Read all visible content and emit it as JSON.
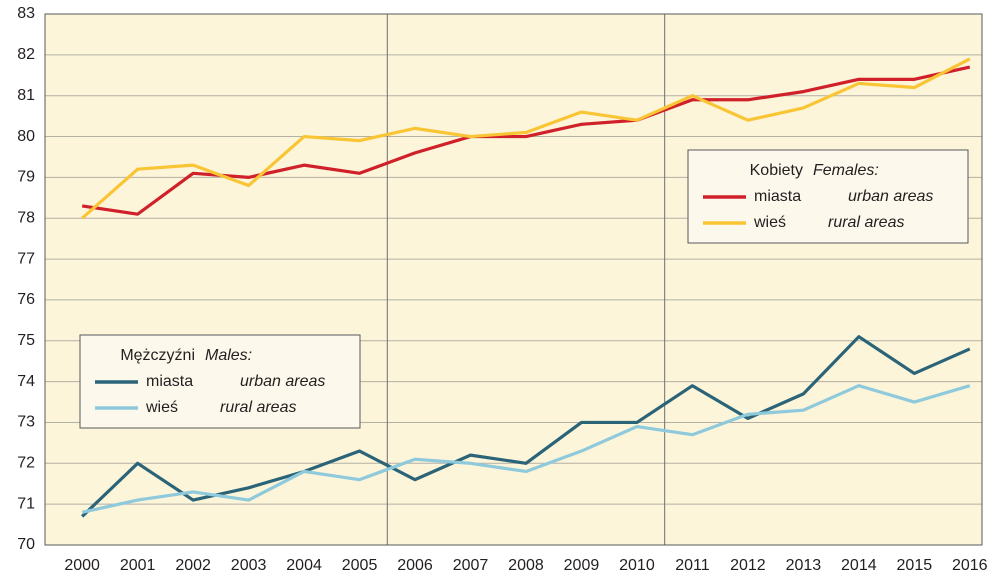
{
  "chart_data": {
    "type": "line",
    "x": [
      2000,
      2001,
      2002,
      2003,
      2004,
      2005,
      2006,
      2007,
      2008,
      2009,
      2010,
      2011,
      2012,
      2013,
      2014,
      2015,
      2016
    ],
    "xlim": [
      1999.33,
      2016.22
    ],
    "xticks": [
      2000,
      2001,
      2002,
      2003,
      2004,
      2005,
      2006,
      2007,
      2008,
      2009,
      2010,
      2011,
      2012,
      2013,
      2014,
      2015,
      2016
    ],
    "vlines": [
      2005.5,
      2010.5
    ],
    "ylim": [
      70,
      83
    ],
    "yticks": [
      70,
      71,
      72,
      73,
      74,
      75,
      76,
      77,
      78,
      79,
      80,
      81,
      82,
      83
    ],
    "grid": true,
    "background": "#fcf5d9",
    "groups": [
      {
        "title": "Kobiety",
        "title_en": "Females:",
        "legend_position": "right",
        "series": [
          {
            "name": "miasta",
            "name_en": "urban areas",
            "color": "#d0202a",
            "values": [
              78.3,
              78.1,
              79.1,
              79.0,
              79.3,
              79.1,
              79.6,
              80.0,
              80.0,
              80.3,
              80.4,
              80.9,
              80.9,
              81.1,
              81.4,
              81.4,
              81.7
            ]
          },
          {
            "name": "wieś",
            "name_en": "rural areas",
            "color": "#f9c534",
            "values": [
              78.0,
              79.2,
              79.3,
              78.8,
              80.0,
              79.9,
              80.2,
              80.0,
              80.1,
              80.6,
              80.4,
              81.0,
              80.4,
              80.7,
              81.3,
              81.2,
              81.9
            ]
          }
        ]
      },
      {
        "title": "Mężczyźni",
        "title_en": "Males:",
        "legend_position": "left",
        "series": [
          {
            "name": "miasta",
            "name_en": "urban areas",
            "color": "#2b6478",
            "values": [
              70.7,
              72.0,
              71.1,
              71.4,
              71.8,
              72.3,
              71.6,
              72.2,
              72.0,
              73.0,
              73.0,
              73.9,
              73.1,
              73.7,
              75.1,
              74.2,
              74.8
            ]
          },
          {
            "name": "wieś",
            "name_en": "rural areas",
            "color": "#8ec9dc",
            "values": [
              70.8,
              71.1,
              71.3,
              71.1,
              71.8,
              71.6,
              72.1,
              72.0,
              71.8,
              72.3,
              72.9,
              72.7,
              73.2,
              73.3,
              73.9,
              73.5,
              73.9
            ]
          }
        ]
      }
    ]
  }
}
